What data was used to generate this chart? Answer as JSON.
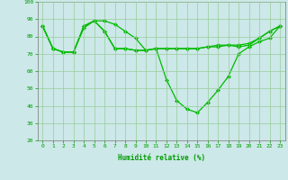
{
  "x": [
    0,
    1,
    2,
    3,
    4,
    5,
    6,
    7,
    8,
    9,
    10,
    11,
    12,
    13,
    14,
    15,
    16,
    17,
    18,
    19,
    20,
    21,
    22,
    23
  ],
  "line_main": [
    86,
    73,
    71,
    71,
    86,
    89,
    89,
    87,
    83,
    79,
    72,
    73,
    55,
    43,
    38,
    36,
    42,
    49,
    57,
    70,
    74,
    77,
    79,
    86
  ],
  "line_max": [
    86,
    73,
    71,
    71,
    86,
    89,
    83,
    73,
    73,
    72,
    72,
    73,
    73,
    73,
    73,
    73,
    74,
    75,
    75,
    75,
    76,
    79,
    83,
    86
  ],
  "line_min": [
    86,
    73,
    71,
    71,
    85,
    89,
    83,
    73,
    73,
    72,
    72,
    73,
    73,
    73,
    73,
    73,
    74,
    74,
    75,
    74,
    75,
    79,
    83,
    86
  ],
  "xlabel": "Humidité relative (%)",
  "ylim": [
    20,
    100
  ],
  "xlim_min": -0.5,
  "xlim_max": 23.5,
  "yticks": [
    20,
    30,
    40,
    50,
    60,
    70,
    80,
    90,
    100
  ],
  "xticks": [
    0,
    1,
    2,
    3,
    4,
    5,
    6,
    7,
    8,
    9,
    10,
    11,
    12,
    13,
    14,
    15,
    16,
    17,
    18,
    19,
    20,
    21,
    22,
    23
  ],
  "line_color": "#00bb00",
  "bg_color": "#cce8e8",
  "grid_color": "#99cc99",
  "text_color": "#009900",
  "marker": "D",
  "markersize": 2.0,
  "linewidth": 0.9,
  "tick_fontsize": 4.5,
  "xlabel_fontsize": 5.5
}
